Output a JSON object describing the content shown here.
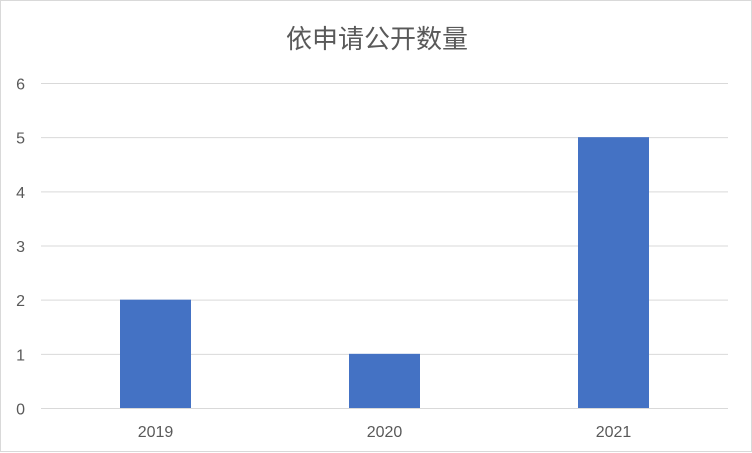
{
  "chart_data": {
    "type": "bar",
    "title": "依申请公开数量",
    "categories": [
      "2019",
      "2020",
      "2021"
    ],
    "values": [
      2,
      1,
      5
    ],
    "ylim": [
      0,
      6
    ],
    "yticks": [
      "0",
      "1",
      "2",
      "3",
      "4",
      "5",
      "6"
    ],
    "grid": true,
    "legend": "none",
    "bar_color": "#4472c4",
    "grid_color": "#d9d9d9",
    "text_color": "#595959"
  }
}
